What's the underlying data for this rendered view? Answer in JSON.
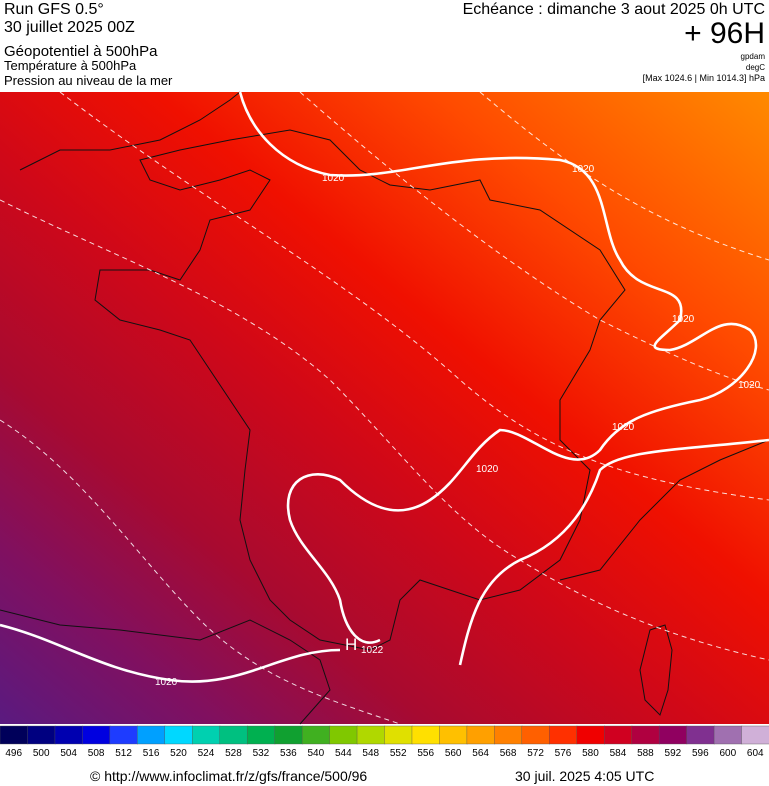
{
  "header": {
    "run": "Run GFS 0.5°",
    "date": "30 juillet 2025 00Z",
    "field": "Géopotentiel à 500hPa",
    "temperature": "Température à 500hPa",
    "pressure": "Pression au niveau de la mer",
    "echeance": "Echéance : dimanche 3 aout 2025 0h UTC",
    "offset": "+ 96H",
    "unit_geopotential": "gpdam",
    "unit_temperature": "degC",
    "unit_pressure": "[Max 1024.6 | Min 1014.3] hPa"
  },
  "map": {
    "isobar_labels": [
      "1020",
      "1020",
      "1020",
      "1020",
      "1020",
      "1020",
      "1020"
    ],
    "high": {
      "letter": "H",
      "value": "1022"
    }
  },
  "legend": {
    "ticks": [
      496,
      500,
      504,
      508,
      512,
      516,
      520,
      524,
      528,
      532,
      536,
      540,
      544,
      548,
      552,
      556,
      560,
      564,
      568,
      572,
      576,
      580,
      584,
      588,
      592,
      596,
      600,
      604
    ],
    "colors": [
      "#00005a",
      "#000080",
      "#0000b0",
      "#0000e0",
      "#1e3cff",
      "#00a0ff",
      "#00d8ff",
      "#00d0b0",
      "#00c080",
      "#00b050",
      "#10a030",
      "#40b020",
      "#80c800",
      "#b0d800",
      "#e0e000",
      "#ffe000",
      "#ffc000",
      "#ffa000",
      "#ff8000",
      "#ff6000",
      "#ff3000",
      "#f00000",
      "#d00020",
      "#b00040",
      "#900060",
      "#803090",
      "#a070b0",
      "#d0b0d8"
    ]
  },
  "footer": {
    "url": "© http://www.infoclimat.fr/z/gfs/france/500/96",
    "timestamp": "30 juil. 2025  4:05 UTC"
  }
}
